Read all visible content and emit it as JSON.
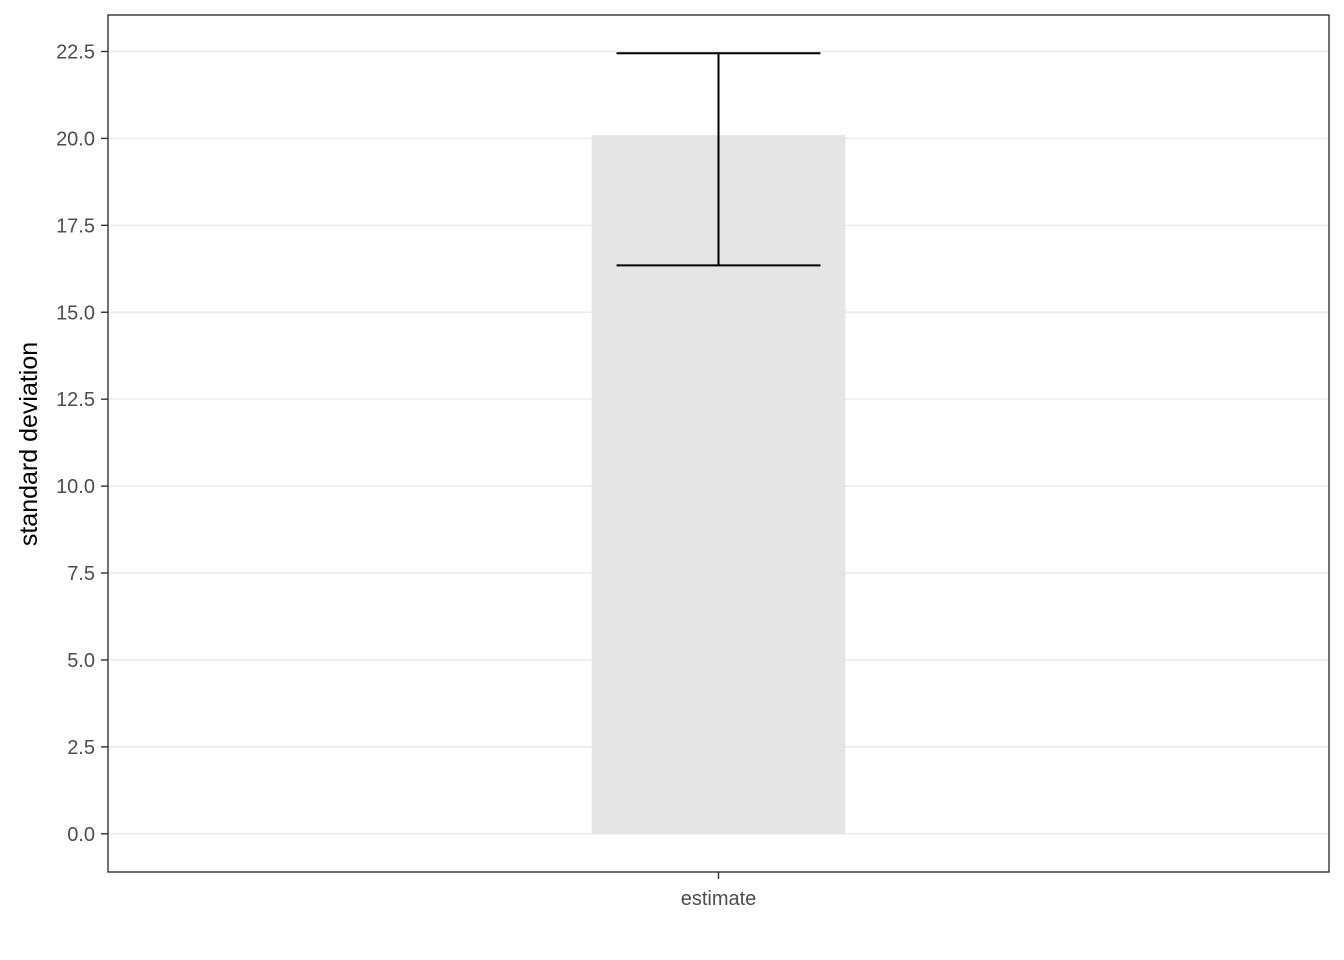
{
  "chart_data": {
    "type": "bar",
    "categories": [
      "estimate"
    ],
    "values": [
      20.1
    ],
    "error_bars": [
      {
        "lower": 16.35,
        "upper": 22.45
      }
    ],
    "xlabel": "",
    "ylabel": "standard deviation",
    "ylim": [
      -1.1,
      23.55
    ],
    "yticks": [
      0.0,
      2.5,
      5.0,
      7.5,
      10.0,
      12.5,
      15.0,
      17.5,
      20.0,
      22.5
    ],
    "ytick_labels": [
      "0.0",
      "2.5",
      "5.0",
      "7.5",
      "10.0",
      "12.5",
      "15.0",
      "17.5",
      "20.0",
      "22.5"
    ],
    "grid": "horizontal",
    "legend": "none",
    "colors": {
      "bar_fill": "#e5e5e5",
      "error_bar": "#000000",
      "grid": "#ebebeb",
      "panel_border": "#333333",
      "tick_label": "#4d4d4d"
    }
  }
}
